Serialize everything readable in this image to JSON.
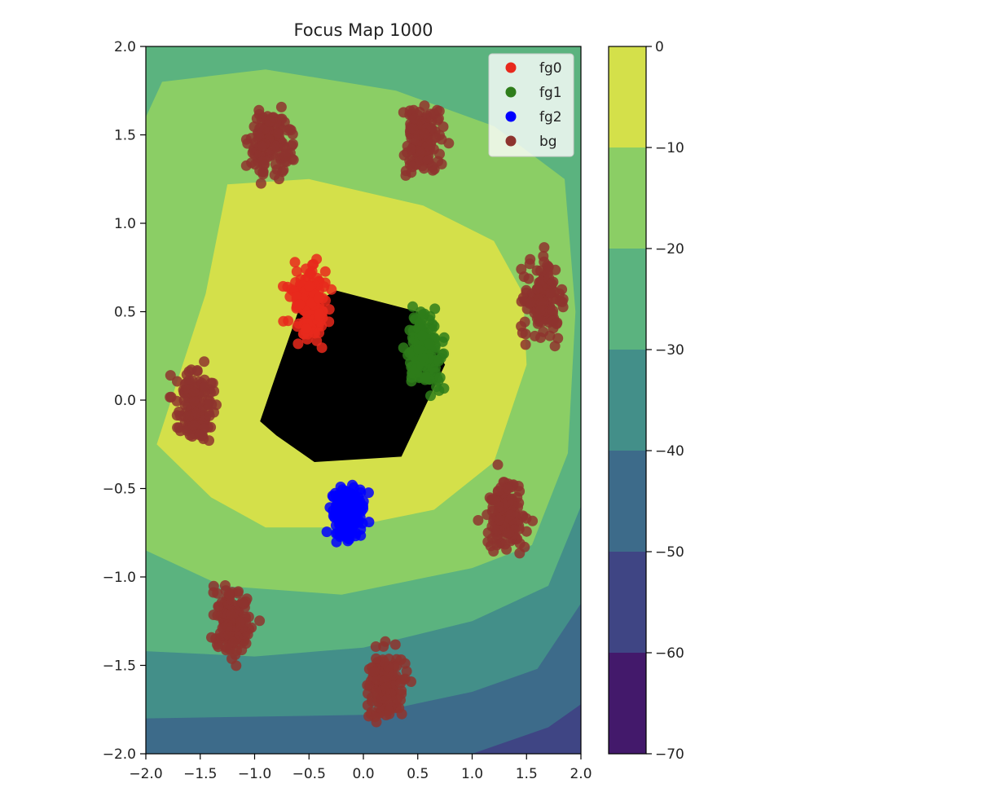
{
  "chart_data": {
    "type": "scatter",
    "title": "Focus Map 1000",
    "xlabel": "",
    "ylabel": "",
    "xlim": [
      -2.0,
      2.0
    ],
    "ylim": [
      -2.0,
      2.0
    ],
    "x_ticks": [
      "−2.0",
      "−1.5",
      "−1.0",
      "−0.5",
      "0.0",
      "0.5",
      "1.0",
      "1.5",
      "2.0"
    ],
    "y_ticks": [
      "−2.0",
      "−1.5",
      "−1.0",
      "−0.5",
      "0.0",
      "0.5",
      "1.0",
      "1.5",
      "2.0"
    ],
    "grid": false,
    "legend_position": "top-right",
    "series": [
      {
        "name": "fg0",
        "color": "#e8291c",
        "center": [
          -0.5,
          0.55
        ],
        "spread": [
          0.09,
          0.1
        ]
      },
      {
        "name": "fg1",
        "color": "#2e7d1a",
        "center": [
          0.57,
          0.27
        ],
        "spread": [
          0.08,
          0.1
        ]
      },
      {
        "name": "fg2",
        "color": "#0000ff",
        "center": [
          -0.15,
          -0.65
        ],
        "spread": [
          0.08,
          0.08
        ]
      },
      {
        "name": "bg",
        "color": "#8e342e",
        "centers": [
          [
            -0.85,
            1.46
          ],
          [
            0.55,
            1.47
          ],
          [
            1.65,
            0.57
          ],
          [
            -1.55,
            -0.03
          ],
          [
            1.3,
            -0.65
          ],
          [
            -1.2,
            -1.25
          ],
          [
            0.2,
            -1.6
          ]
        ],
        "spread": [
          0.09,
          0.1
        ]
      }
    ],
    "contour": {
      "colorbar_ticks": [
        "0",
        "−10",
        "−20",
        "−30",
        "−40",
        "−50",
        "−60",
        "−70"
      ],
      "levels": [
        {
          "range": [
            0,
            -10
          ],
          "color": "#d4e04a"
        },
        {
          "range": [
            -10,
            -20
          ],
          "color": "#8bce65"
        },
        {
          "range": [
            -20,
            -30
          ],
          "color": "#5bb37f"
        },
        {
          "range": [
            -30,
            -40
          ],
          "color": "#438f89"
        },
        {
          "range": [
            -40,
            -50
          ],
          "color": "#3d6b8a"
        },
        {
          "range": [
            -50,
            -60
          ],
          "color": "#3f4584"
        },
        {
          "range": [
            -60,
            -70
          ],
          "color": "#43196b"
        }
      ],
      "regions": [
        {
          "level": -20,
          "polygon": [
            [
              -1.85,
              1.8
            ],
            [
              -0.9,
              1.87
            ],
            [
              0.3,
              1.75
            ],
            [
              1.2,
              1.55
            ],
            [
              1.85,
              1.25
            ],
            [
              1.95,
              0.5
            ],
            [
              1.88,
              -0.3
            ],
            [
              1.55,
              -0.82
            ],
            [
              1.0,
              -0.95
            ],
            [
              -0.2,
              -1.1
            ],
            [
              -1.3,
              -1.05
            ],
            [
              -2.0,
              -0.85
            ],
            [
              -2.0,
              1.6
            ]
          ]
        },
        {
          "level": -10,
          "polygon": [
            [
              -1.25,
              1.22
            ],
            [
              -0.5,
              1.25
            ],
            [
              0.55,
              1.1
            ],
            [
              1.2,
              0.9
            ],
            [
              1.47,
              0.6
            ],
            [
              1.5,
              0.2
            ],
            [
              1.2,
              -0.35
            ],
            [
              0.65,
              -0.62
            ],
            [
              -0.15,
              -0.72
            ],
            [
              -0.9,
              -0.72
            ],
            [
              -1.4,
              -0.55
            ],
            [
              -1.9,
              -0.25
            ],
            [
              -1.45,
              0.6
            ]
          ]
        },
        {
          "level": 0,
          "polygon": [
            [
              -0.6,
              0.5
            ],
            [
              -0.25,
              0.62
            ],
            [
              0.5,
              0.5
            ],
            [
              0.75,
              0.2
            ],
            [
              0.35,
              -0.32
            ],
            [
              -0.45,
              -0.35
            ],
            [
              -0.8,
              -0.2
            ],
            [
              -0.95,
              -0.12
            ],
            [
              -0.8,
              0.15
            ]
          ]
        }
      ],
      "low_bands": [
        {
          "level": -40,
          "polygon": [
            [
              -2.0,
              -1.42
            ],
            [
              -1.0,
              -1.45
            ],
            [
              0.0,
              -1.4
            ],
            [
              1.0,
              -1.25
            ],
            [
              1.7,
              -1.05
            ],
            [
              2.0,
              -0.6
            ],
            [
              2.0,
              -2.0
            ],
            [
              -2.0,
              -2.0
            ]
          ]
        },
        {
          "level": -50,
          "polygon": [
            [
              -2.0,
              -1.8
            ],
            [
              0.0,
              -1.78
            ],
            [
              1.0,
              -1.65
            ],
            [
              1.6,
              -1.52
            ],
            [
              2.0,
              -1.15
            ],
            [
              2.0,
              -2.0
            ],
            [
              -2.0,
              -2.0
            ]
          ]
        },
        {
          "level": -60,
          "polygon": [
            [
              1.0,
              -2.0
            ],
            [
              1.7,
              -1.85
            ],
            [
              2.0,
              -1.72
            ],
            [
              2.0,
              -2.0
            ]
          ]
        }
      ]
    }
  }
}
